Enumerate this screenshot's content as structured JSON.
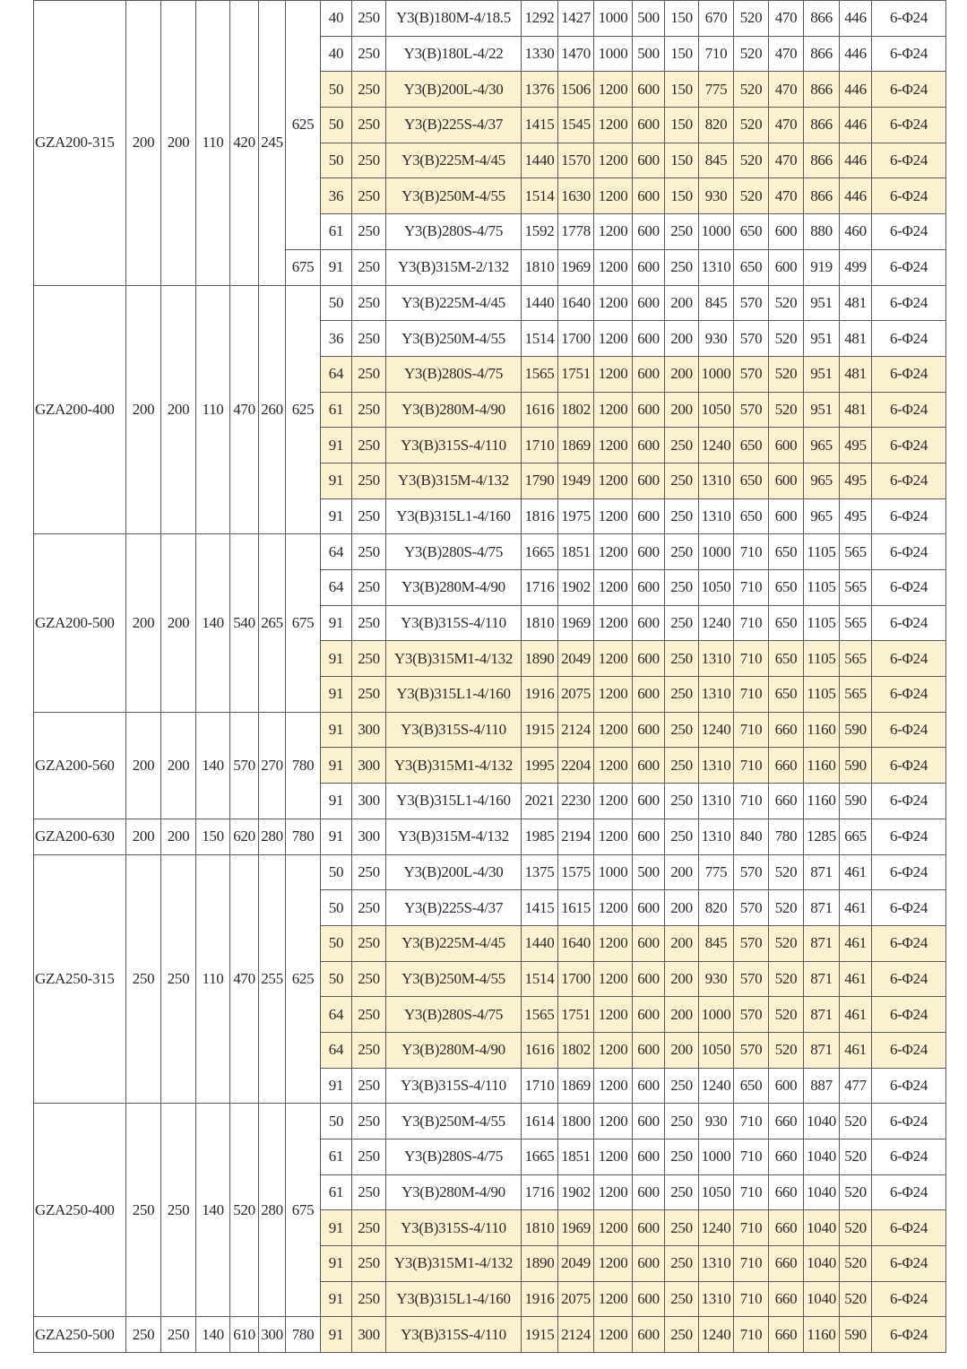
{
  "highlight_color": "#fbf0cf",
  "groups": [
    {
      "model": "GZA200-315",
      "dims": [
        "200",
        "200",
        "110",
        "420",
        "245"
      ],
      "subgroups": [
        {
          "h": "625",
          "rows": [
            {
              "v": [
                "40",
                "250",
                "Y3(B)180M-4/18.5",
                "1292",
                "1427",
                "1000",
                "500",
                "150",
                "670",
                "520",
                "470",
                "866",
                "446",
                "6-Φ24"
              ],
              "hl": false
            },
            {
              "v": [
                "40",
                "250",
                "Y3(B)180L-4/22",
                "1330",
                "1470",
                "1000",
                "500",
                "150",
                "710",
                "520",
                "470",
                "866",
                "446",
                "6-Φ24"
              ],
              "hl": false
            },
            {
              "v": [
                "50",
                "250",
                "Y3(B)200L-4/30",
                "1376",
                "1506",
                "1200",
                "600",
                "150",
                "775",
                "520",
                "470",
                "866",
                "446",
                "6-Φ24"
              ],
              "hl": true
            },
            {
              "v": [
                "50",
                "250",
                "Y3(B)225S-4/37",
                "1415",
                "1545",
                "1200",
                "600",
                "150",
                "820",
                "520",
                "470",
                "866",
                "446",
                "6-Φ24"
              ],
              "hl": true
            },
            {
              "v": [
                "50",
                "250",
                "Y3(B)225M-4/45",
                "1440",
                "1570",
                "1200",
                "600",
                "150",
                "845",
                "520",
                "470",
                "866",
                "446",
                "6-Φ24"
              ],
              "hl": true
            },
            {
              "v": [
                "36",
                "250",
                "Y3(B)250M-4/55",
                "1514",
                "1630",
                "1200",
                "600",
                "150",
                "930",
                "520",
                "470",
                "866",
                "446",
                "6-Φ24"
              ],
              "hl": true
            },
            {
              "v": [
                "61",
                "250",
                "Y3(B)280S-4/75",
                "1592",
                "1778",
                "1200",
                "600",
                "250",
                "1000",
                "650",
                "600",
                "880",
                "460",
                "6-Φ24"
              ],
              "hl": false
            }
          ]
        },
        {
          "h": "675",
          "rows": [
            {
              "v": [
                "91",
                "250",
                "Y3(B)315M-2/132",
                "1810",
                "1969",
                "1200",
                "600",
                "250",
                "1310",
                "650",
                "600",
                "919",
                "499",
                "6-Φ24"
              ],
              "hl": false
            }
          ]
        }
      ]
    },
    {
      "model": "GZA200-400",
      "dims": [
        "200",
        "200",
        "110",
        "470",
        "260"
      ],
      "subgroups": [
        {
          "h": "625",
          "rows": [
            {
              "v": [
                "50",
                "250",
                "Y3(B)225M-4/45",
                "1440",
                "1640",
                "1200",
                "600",
                "200",
                "845",
                "570",
                "520",
                "951",
                "481",
                "6-Φ24"
              ],
              "hl": false
            },
            {
              "v": [
                "36",
                "250",
                "Y3(B)250M-4/55",
                "1514",
                "1700",
                "1200",
                "600",
                "200",
                "930",
                "570",
                "520",
                "951",
                "481",
                "6-Φ24"
              ],
              "hl": false
            },
            {
              "v": [
                "64",
                "250",
                "Y3(B)280S-4/75",
                "1565",
                "1751",
                "1200",
                "600",
                "200",
                "1000",
                "570",
                "520",
                "951",
                "481",
                "6-Φ24"
              ],
              "hl": true
            },
            {
              "v": [
                "61",
                "250",
                "Y3(B)280M-4/90",
                "1616",
                "1802",
                "1200",
                "600",
                "200",
                "1050",
                "570",
                "520",
                "951",
                "481",
                "6-Φ24"
              ],
              "hl": true
            },
            {
              "v": [
                "91",
                "250",
                "Y3(B)315S-4/110",
                "1710",
                "1869",
                "1200",
                "600",
                "250",
                "1240",
                "650",
                "600",
                "965",
                "495",
                "6-Φ24"
              ],
              "hl": true
            },
            {
              "v": [
                "91",
                "250",
                "Y3(B)315M-4/132",
                "1790",
                "1949",
                "1200",
                "600",
                "250",
                "1310",
                "650",
                "600",
                "965",
                "495",
                "6-Φ24"
              ],
              "hl": true
            },
            {
              "v": [
                "91",
                "250",
                "Y3(B)315L1-4/160",
                "1816",
                "1975",
                "1200",
                "600",
                "250",
                "1310",
                "650",
                "600",
                "965",
                "495",
                "6-Φ24"
              ],
              "hl": false
            }
          ]
        }
      ]
    },
    {
      "model": "GZA200-500",
      "dims": [
        "200",
        "200",
        "140",
        "540",
        "265"
      ],
      "subgroups": [
        {
          "h": "675",
          "rows": [
            {
              "v": [
                "64",
                "250",
                "Y3(B)280S-4/75",
                "1665",
                "1851",
                "1200",
                "600",
                "250",
                "1000",
                "710",
                "650",
                "1105",
                "565",
                "6-Φ24"
              ],
              "hl": false
            },
            {
              "v": [
                "64",
                "250",
                "Y3(B)280M-4/90",
                "1716",
                "1902",
                "1200",
                "600",
                "250",
                "1050",
                "710",
                "650",
                "1105",
                "565",
                "6-Φ24"
              ],
              "hl": false
            },
            {
              "v": [
                "91",
                "250",
                "Y3(B)315S-4/110",
                "1810",
                "1969",
                "1200",
                "600",
                "250",
                "1240",
                "710",
                "650",
                "1105",
                "565",
                "6-Φ24"
              ],
              "hl": false
            },
            {
              "v": [
                "91",
                "250",
                "Y3(B)315M1-4/132",
                "1890",
                "2049",
                "1200",
                "600",
                "250",
                "1310",
                "710",
                "650",
                "1105",
                "565",
                "6-Φ24"
              ],
              "hl": true
            },
            {
              "v": [
                "91",
                "250",
                "Y3(B)315L1-4/160",
                "1916",
                "2075",
                "1200",
                "600",
                "250",
                "1310",
                "710",
                "650",
                "1105",
                "565",
                "6-Φ24"
              ],
              "hl": true
            }
          ]
        }
      ]
    },
    {
      "model": "GZA200-560",
      "dims": [
        "200",
        "200",
        "140",
        "570",
        "270"
      ],
      "subgroups": [
        {
          "h": "780",
          "rows": [
            {
              "v": [
                "91",
                "300",
                "Y3(B)315S-4/110",
                "1915",
                "2124",
                "1200",
                "600",
                "250",
                "1240",
                "710",
                "660",
                "1160",
                "590",
                "6-Φ24"
              ],
              "hl": true
            },
            {
              "v": [
                "91",
                "300",
                "Y3(B)315M1-4/132",
                "1995",
                "2204",
                "1200",
                "600",
                "250",
                "1310",
                "710",
                "660",
                "1160",
                "590",
                "6-Φ24"
              ],
              "hl": true
            },
            {
              "v": [
                "91",
                "300",
                "Y3(B)315L1-4/160",
                "2021",
                "2230",
                "1200",
                "600",
                "250",
                "1310",
                "710",
                "660",
                "1160",
                "590",
                "6-Φ24"
              ],
              "hl": false
            }
          ]
        }
      ]
    },
    {
      "model": "GZA200-630",
      "dims": [
        "200",
        "200",
        "150",
        "620",
        "280"
      ],
      "subgroups": [
        {
          "h": "780",
          "rows": [
            {
              "v": [
                "91",
                "300",
                "Y3(B)315M-4/132",
                "1985",
                "2194",
                "1200",
                "600",
                "250",
                "1310",
                "840",
                "780",
                "1285",
                "665",
                "6-Φ24"
              ],
              "hl": false
            }
          ]
        }
      ]
    },
    {
      "model": "GZA250-315",
      "dims": [
        "250",
        "250",
        "110",
        "470",
        "255"
      ],
      "subgroups": [
        {
          "h": "625",
          "rows": [
            {
              "v": [
                "50",
                "250",
                "Y3(B)200L-4/30",
                "1375",
                "1575",
                "1000",
                "500",
                "200",
                "775",
                "570",
                "520",
                "871",
                "461",
                "6-Φ24"
              ],
              "hl": false
            },
            {
              "v": [
                "50",
                "250",
                "Y3(B)225S-4/37",
                "1415",
                "1615",
                "1200",
                "600",
                "200",
                "820",
                "570",
                "520",
                "871",
                "461",
                "6-Φ24"
              ],
              "hl": false
            },
            {
              "v": [
                "50",
                "250",
                "Y3(B)225M-4/45",
                "1440",
                "1640",
                "1200",
                "600",
                "200",
                "845",
                "570",
                "520",
                "871",
                "461",
                "6-Φ24"
              ],
              "hl": true
            },
            {
              "v": [
                "50",
                "250",
                "Y3(B)250M-4/55",
                "1514",
                "1700",
                "1200",
                "600",
                "200",
                "930",
                "570",
                "520",
                "871",
                "461",
                "6-Φ24"
              ],
              "hl": true
            },
            {
              "v": [
                "64",
                "250",
                "Y3(B)280S-4/75",
                "1565",
                "1751",
                "1200",
                "600",
                "200",
                "1000",
                "570",
                "520",
                "871",
                "461",
                "6-Φ24"
              ],
              "hl": true
            },
            {
              "v": [
                "64",
                "250",
                "Y3(B)280M-4/90",
                "1616",
                "1802",
                "1200",
                "600",
                "200",
                "1050",
                "570",
                "520",
                "871",
                "461",
                "6-Φ24"
              ],
              "hl": true
            },
            {
              "v": [
                "91",
                "250",
                "Y3(B)315S-4/110",
                "1710",
                "1869",
                "1200",
                "600",
                "250",
                "1240",
                "650",
                "600",
                "887",
                "477",
                "6-Φ24"
              ],
              "hl": false
            }
          ]
        }
      ]
    },
    {
      "model": "GZA250-400",
      "dims": [
        "250",
        "250",
        "140",
        "520",
        "280"
      ],
      "subgroups": [
        {
          "h": "675",
          "rows": [
            {
              "v": [
                "50",
                "250",
                "Y3(B)250M-4/55",
                "1614",
                "1800",
                "1200",
                "600",
                "250",
                "930",
                "710",
                "660",
                "1040",
                "520",
                "6-Φ24"
              ],
              "hl": false
            },
            {
              "v": [
                "61",
                "250",
                "Y3(B)280S-4/75",
                "1665",
                "1851",
                "1200",
                "600",
                "250",
                "1000",
                "710",
                "660",
                "1040",
                "520",
                "6-Φ24"
              ],
              "hl": false
            },
            {
              "v": [
                "61",
                "250",
                "Y3(B)280M-4/90",
                "1716",
                "1902",
                "1200",
                "600",
                "250",
                "1050",
                "710",
                "660",
                "1040",
                "520",
                "6-Φ24"
              ],
              "hl": false
            },
            {
              "v": [
                "91",
                "250",
                "Y3(B)315S-4/110",
                "1810",
                "1969",
                "1200",
                "600",
                "250",
                "1240",
                "710",
                "660",
                "1040",
                "520",
                "6-Φ24"
              ],
              "hl": true
            },
            {
              "v": [
                "91",
                "250",
                "Y3(B)315M1-4/132",
                "1890",
                "2049",
                "1200",
                "600",
                "250",
                "1310",
                "710",
                "660",
                "1040",
                "520",
                "6-Φ24"
              ],
              "hl": true
            },
            {
              "v": [
                "91",
                "250",
                "Y3(B)315L1-4/160",
                "1916",
                "2075",
                "1200",
                "600",
                "250",
                "1310",
                "710",
                "660",
                "1040",
                "520",
                "6-Φ24"
              ],
              "hl": true
            }
          ]
        }
      ]
    },
    {
      "model": "GZA250-500",
      "dims": [
        "250",
        "250",
        "140",
        "610",
        "300"
      ],
      "subgroups": [
        {
          "h": "780",
          "rows": [
            {
              "v": [
                "91",
                "300",
                "Y3(B)315S-4/110",
                "1915",
                "2124",
                "1200",
                "600",
                "250",
                "1240",
                "710",
                "660",
                "1160",
                "590",
                "6-Φ24"
              ],
              "hl": true
            }
          ]
        }
      ]
    }
  ]
}
